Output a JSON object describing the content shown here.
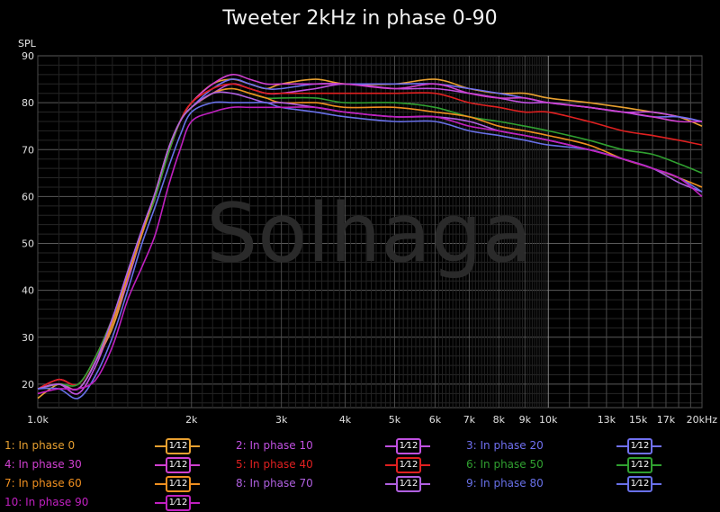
{
  "chart_data": {
    "type": "line",
    "title": "Tweeter 2kHz in phase 0-90",
    "ylabel": "SPL",
    "xlabel": "",
    "x_scale": "log",
    "xlim": [
      1000,
      20000
    ],
    "ylim": [
      15,
      90
    ],
    "grid": true,
    "watermark": "Solhaga",
    "y_ticks": [
      20,
      30,
      40,
      50,
      60,
      70,
      80,
      90
    ],
    "x_ticks": [
      {
        "value": 1000,
        "label": "1.0k"
      },
      {
        "value": 2000,
        "label": "2k"
      },
      {
        "value": 3000,
        "label": "3k"
      },
      {
        "value": 4000,
        "label": "4k"
      },
      {
        "value": 5000,
        "label": "5k"
      },
      {
        "value": 6000,
        "label": "6k"
      },
      {
        "value": 7000,
        "label": "7k"
      },
      {
        "value": 8000,
        "label": "8k"
      },
      {
        "value": 9000,
        "label": "9k"
      },
      {
        "value": 10000,
        "label": "10k"
      },
      {
        "value": 13000,
        "label": "13k"
      },
      {
        "value": 15000,
        "label": "15k"
      },
      {
        "value": 17000,
        "label": "17k"
      },
      {
        "value": 20000,
        "label": "20kHz"
      }
    ],
    "x": [
      1000,
      1100,
      1200,
      1300,
      1400,
      1500,
      1600,
      1700,
      1800,
      1900,
      2000,
      2200,
      2400,
      2600,
      2800,
      3000,
      3500,
      4000,
      5000,
      6000,
      7000,
      8000,
      9000,
      10000,
      12000,
      14000,
      16000,
      18000,
      20000
    ],
    "series": [
      {
        "name": "1: In phase 0",
        "color": "#e8a030",
        "values": [
          17,
          20,
          19,
          25,
          32,
          42,
          52,
          60,
          70,
          76,
          80,
          84,
          85,
          84,
          83,
          84,
          85,
          84,
          84,
          85,
          83,
          82,
          82,
          81,
          80,
          79,
          78,
          77,
          75
        ]
      },
      {
        "name": "2: In phase 10",
        "color": "#c050e0",
        "values": [
          19,
          20,
          18,
          24,
          33,
          42,
          52,
          60,
          70,
          76,
          79,
          82,
          84,
          83,
          82,
          82,
          83,
          84,
          83,
          83,
          82,
          81,
          80,
          80,
          79,
          78,
          78,
          77,
          76
        ]
      },
      {
        "name": "3: In phase 20",
        "color": "#7070f0",
        "values": [
          19,
          20,
          19,
          25,
          34,
          44,
          53,
          61,
          70,
          76,
          79,
          83,
          85,
          84,
          83,
          83,
          84,
          84,
          84,
          84,
          83,
          82,
          81,
          80,
          79,
          78,
          77,
          77,
          76
        ]
      },
      {
        "name": "4: In phase 30",
        "color": "#d040d0",
        "values": [
          19,
          21,
          20,
          26,
          34,
          43,
          52,
          60,
          69,
          76,
          80,
          84,
          86,
          85,
          84,
          84,
          84,
          84,
          83,
          84,
          82,
          81,
          81,
          80,
          79,
          78,
          77,
          76,
          76
        ]
      },
      {
        "name": "5: In phase 40",
        "color": "#e02020",
        "values": [
          19,
          21,
          20,
          26,
          34,
          43,
          52,
          60,
          69,
          76,
          80,
          83,
          84,
          83,
          82,
          82,
          82,
          82,
          82,
          82,
          80,
          79,
          78,
          78,
          76,
          74,
          73,
          72,
          71
        ]
      },
      {
        "name": "6: In phase 50",
        "color": "#30a030",
        "values": [
          19,
          20,
          20,
          26,
          34,
          43,
          52,
          60,
          69,
          76,
          79,
          82,
          83,
          82,
          81,
          81,
          81,
          80,
          80,
          79,
          77,
          76,
          75,
          74,
          72,
          70,
          69,
          67,
          65
        ]
      },
      {
        "name": "7: In phase 60",
        "color": "#f09020",
        "values": [
          19,
          20,
          19,
          25,
          33,
          43,
          52,
          61,
          70,
          76,
          79,
          82,
          83,
          82,
          81,
          80,
          80,
          79,
          79,
          78,
          77,
          75,
          74,
          73,
          71,
          68,
          66,
          64,
          62
        ]
      },
      {
        "name": "8: In phase 70",
        "color": "#b060e0",
        "values": [
          19,
          20,
          19,
          25,
          34,
          44,
          53,
          61,
          70,
          76,
          79,
          82,
          82,
          81,
          80,
          80,
          79,
          78,
          77,
          77,
          76,
          74,
          73,
          72,
          70,
          68,
          66,
          63,
          61
        ]
      },
      {
        "name": "9: In phase 80",
        "color": "#6870e8",
        "values": [
          19,
          19,
          17,
          22,
          30,
          40,
          50,
          58,
          66,
          73,
          78,
          80,
          80,
          80,
          80,
          79,
          78,
          77,
          76,
          76,
          74,
          73,
          72,
          71,
          70,
          68,
          66,
          64,
          61
        ]
      },
      {
        "name": "10: In phase 90",
        "color": "#c020c0",
        "values": [
          18,
          19,
          19,
          21,
          28,
          38,
          45,
          52,
          62,
          70,
          76,
          78,
          79,
          79,
          79,
          79,
          79,
          78,
          77,
          77,
          75,
          74,
          73,
          72,
          70,
          68,
          66,
          64,
          60
        ]
      }
    ]
  },
  "legend": {
    "smoothing_label": "1⁄12",
    "items": [
      {
        "label": "1: In phase 0",
        "color": "#e8a030",
        "text_color": "#e8a030"
      },
      {
        "label": "2: In phase 10",
        "color": "#c050e0",
        "text_color": "#c050e0"
      },
      {
        "label": "3: In phase 20",
        "color": "#7070f0",
        "text_color": "#7070f0"
      },
      {
        "label": "4: In phase 30",
        "color": "#d040d0",
        "text_color": "#d040d0"
      },
      {
        "label": "5: In phase 40",
        "color": "#e02020",
        "text_color": "#e02020"
      },
      {
        "label": "6: In phase 50",
        "color": "#30a030",
        "text_color": "#30a030"
      },
      {
        "label": "7: In phase 60",
        "color": "#f09020",
        "text_color": "#f09020"
      },
      {
        "label": "8: In phase 70",
        "color": "#b060e0",
        "text_color": "#b060e0"
      },
      {
        "label": "9: In phase 80",
        "color": "#6870e8",
        "text_color": "#6870e8"
      },
      {
        "label": "10: In phase 90",
        "color": "#c020c0",
        "text_color": "#c020c0"
      }
    ]
  }
}
